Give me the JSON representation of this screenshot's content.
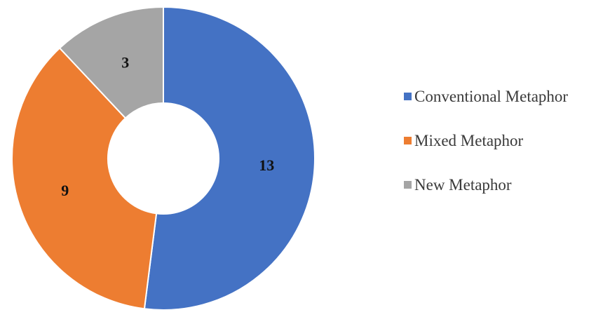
{
  "chart_data": {
    "type": "pie",
    "variant": "donut",
    "title": "",
    "categories": [
      "Conventional Metaphor",
      "Mixed Metaphor",
      "New Metaphor"
    ],
    "values": [
      13,
      9,
      3
    ],
    "colors": [
      "#4472c4",
      "#ed7d31",
      "#a5a5a5"
    ],
    "data_labels": [
      "13",
      "9",
      "3"
    ],
    "legend_position": "right"
  }
}
